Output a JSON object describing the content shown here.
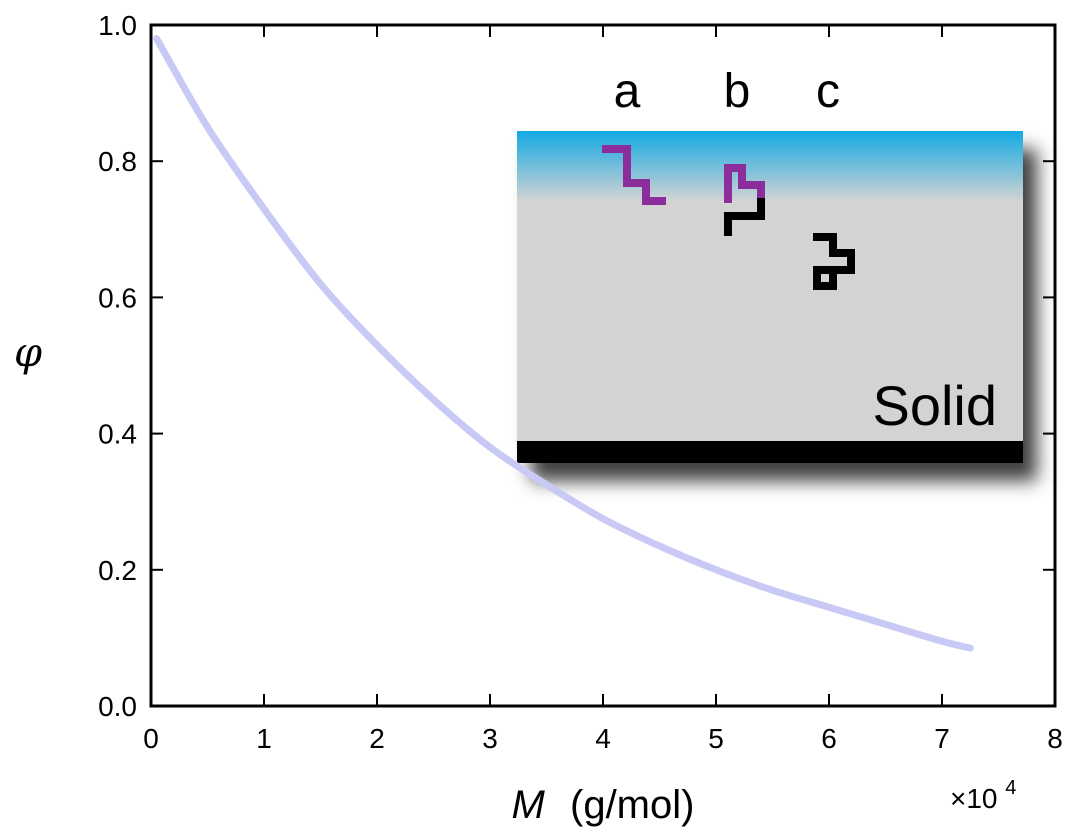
{
  "chart_data": {
    "type": "line",
    "xlabel": {
      "italic": "M",
      "rest": "(g/mol)"
    },
    "ylabel": "φ",
    "x_multiplier": {
      "base": "×10",
      "exponent": "4"
    },
    "xlim": [
      0,
      8
    ],
    "ylim": [
      0.0,
      1.0
    ],
    "x_ticks": [
      0,
      1,
      2,
      3,
      4,
      5,
      6,
      7,
      8
    ],
    "x_tick_labels": [
      "0",
      "1",
      "2",
      "3",
      "4",
      "5",
      "6",
      "7",
      "8"
    ],
    "y_ticks": [
      0.0,
      0.2,
      0.4,
      0.6,
      0.8,
      1.0
    ],
    "y_tick_labels": [
      "0.0",
      "0.2",
      "0.4",
      "0.6",
      "0.8",
      "1.0"
    ],
    "grid": false,
    "series": [
      {
        "color": "#c8caf5",
        "x": [
          0.05,
          0.5,
          1.0,
          1.5,
          2.0,
          2.5,
          3.0,
          3.5,
          4.0,
          4.5,
          5.0,
          5.5,
          6.0,
          6.5,
          7.0,
          7.25
        ],
        "y": [
          0.98,
          0.85,
          0.73,
          0.62,
          0.53,
          0.45,
          0.38,
          0.325,
          0.275,
          0.235,
          0.2,
          0.17,
          0.145,
          0.12,
          0.095,
          0.085
        ]
      }
    ],
    "inset": {
      "labels": [
        "a",
        "b",
        "c"
      ],
      "solid_label": "Solid",
      "colors": {
        "fluid_top": "#13a9e3",
        "solid": "#d3d3d3",
        "substrate": "#000000",
        "chain_purple": "#8b2d9b",
        "chain_black": "#000000"
      }
    }
  }
}
